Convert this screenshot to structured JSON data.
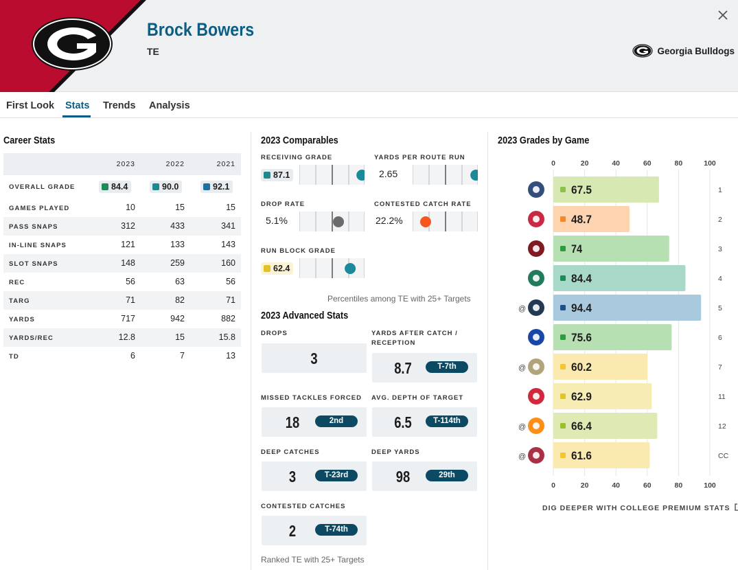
{
  "player": {
    "name": "Brock Bowers",
    "position": "TE"
  },
  "team": {
    "name": "Georgia Bulldogs",
    "logo_icon": "georgia-g-logo",
    "primary_color": "#ba0c2f"
  },
  "tabs": [
    {
      "label": "First Look",
      "active": false
    },
    {
      "label": "Stats",
      "active": true
    },
    {
      "label": "Trends",
      "active": false
    },
    {
      "label": "Analysis",
      "active": false
    }
  ],
  "colors": {
    "accent": "#0a5e84",
    "grade_green": "#1e8a5a",
    "grade_teal": "#1f8a8e",
    "grade_blue": "#1e6fa2",
    "grade_yellow": "#e5c129",
    "grade_orange": "#f5862a"
  },
  "career": {
    "title": "Career Stats",
    "years": [
      "2023",
      "2022",
      "2021"
    ],
    "overall_label": "OVERALL GRADE",
    "overall": [
      {
        "value": "84.4",
        "color": "#1e8a5a"
      },
      {
        "value": "90.0",
        "color": "#1f8a8e"
      },
      {
        "value": "92.1",
        "color": "#1e6fa2"
      }
    ],
    "rows": [
      {
        "label": "GAMES PLAYED",
        "values": [
          "10",
          "15",
          "15"
        ]
      },
      {
        "label": "PASS SNAPS",
        "values": [
          "312",
          "433",
          "341"
        ]
      },
      {
        "label": "IN-LINE SNAPS",
        "values": [
          "121",
          "133",
          "143"
        ]
      },
      {
        "label": "SLOT SNAPS",
        "values": [
          "148",
          "259",
          "160"
        ]
      },
      {
        "label": "REC",
        "values": [
          "56",
          "63",
          "56"
        ]
      },
      {
        "label": "TARG",
        "values": [
          "71",
          "82",
          "71"
        ]
      },
      {
        "label": "YARDS",
        "values": [
          "717",
          "942",
          "882"
        ]
      },
      {
        "label": "YARDS/REC",
        "values": [
          "12.8",
          "15",
          "15.8"
        ]
      },
      {
        "label": "TD",
        "values": [
          "6",
          "7",
          "13"
        ]
      }
    ]
  },
  "comparables": {
    "title": "2023 Comparables",
    "note": "Percentiles among TE with 25+ Targets",
    "items": [
      {
        "label": "RECEIVING GRADE",
        "value": "87.1",
        "chip": true,
        "chip_color": "#1f8a8e",
        "dot_color": "#1a8a9a",
        "percentile": 0.96
      },
      {
        "label": "YARDS PER ROUTE RUN",
        "value": "2.65",
        "chip": false,
        "dot_color": "#1a8a9a",
        "percentile": 0.97
      },
      {
        "label": "DROP RATE",
        "value": "5.1%",
        "chip": false,
        "dot_color": "#6b6b6b",
        "percentile": 0.6
      },
      {
        "label": "CONTESTED CATCH RATE",
        "value": "22.2%",
        "chip": false,
        "dot_color": "#f5581f",
        "percentile": 0.2
      },
      {
        "label": "RUN BLOCK GRADE",
        "value": "62.4",
        "chip": true,
        "chip_color": "#e5c129",
        "dot_color": "#1a8a9a",
        "percentile": 0.78
      }
    ]
  },
  "advanced": {
    "title": "2023 Advanced Stats",
    "note": "Ranked TE with 25+ Targets",
    "items": [
      {
        "label": "DROPS",
        "value": "3",
        "rank": ""
      },
      {
        "label": "YARDS AFTER CATCH / RECEPTION",
        "value": "8.7",
        "rank": "T-7th"
      },
      {
        "label": "MISSED TACKLES FORCED",
        "value": "18",
        "rank": "2nd"
      },
      {
        "label": "AVG. DEPTH OF TARGET",
        "value": "6.5",
        "rank": "T-114th"
      },
      {
        "label": "DEEP CATCHES",
        "value": "3",
        "rank": "T-23rd"
      },
      {
        "label": "DEEP YARDS",
        "value": "98",
        "rank": "29th"
      },
      {
        "label": "CONTESTED CATCHES",
        "value": "2",
        "rank": "T-74th"
      }
    ]
  },
  "grades_by_game": {
    "title": "2023 Grades by Game",
    "footer": "DIG DEEPER WITH COLLEGE PREMIUM STATS"
  },
  "chart_data": {
    "type": "bar",
    "orientation": "horizontal",
    "title": "2023 Grades by Game",
    "xlim": [
      0,
      100
    ],
    "ticks": [
      0,
      20,
      40,
      60,
      80,
      100
    ],
    "grid": true,
    "games": [
      {
        "week": "1",
        "away": false,
        "opponent_icon": "ut-martin-logo",
        "grade": 67.5,
        "label": "67.5",
        "color": "#d7e8b3",
        "chip": "#8bc34a"
      },
      {
        "week": "2",
        "away": false,
        "opponent_icon": "ball-state-logo",
        "grade": 48.7,
        "label": "48.7",
        "color": "#fdd3b0",
        "chip": "#f5862a"
      },
      {
        "week": "3",
        "away": false,
        "opponent_icon": "south-carolina-logo",
        "grade": 74,
        "label": "74",
        "color": "#b6e0b1",
        "chip": "#2e9b3f"
      },
      {
        "week": "4",
        "away": false,
        "opponent_icon": "uab-logo",
        "grade": 84.4,
        "label": "84.4",
        "color": "#a7d8c8",
        "chip": "#1e8a5a"
      },
      {
        "week": "5",
        "away": true,
        "opponent_icon": "auburn-logo",
        "grade": 94.4,
        "label": "94.4",
        "color": "#a9c9de",
        "chip": "#1e4f8a"
      },
      {
        "week": "6",
        "away": false,
        "opponent_icon": "kentucky-logo",
        "grade": 75.6,
        "label": "75.6",
        "color": "#b6e0b1",
        "chip": "#2e9b3f"
      },
      {
        "week": "7",
        "away": true,
        "opponent_icon": "vanderbilt-logo",
        "grade": 60.2,
        "label": "60.2",
        "color": "#fbeab0",
        "chip": "#f3c531"
      },
      {
        "week": "11",
        "away": false,
        "opponent_icon": "ole-miss-logo",
        "grade": 62.9,
        "label": "62.9",
        "color": "#f6ecb4",
        "chip": "#e0c52a"
      },
      {
        "week": "12",
        "away": true,
        "opponent_icon": "tennessee-logo",
        "grade": 66.4,
        "label": "66.4",
        "color": "#dfe9b4",
        "chip": "#9cbf2d"
      },
      {
        "week": "CC",
        "away": true,
        "opponent_icon": "alabama-logo",
        "grade": 61.6,
        "label": "61.6",
        "color": "#fbeab0",
        "chip": "#f3c531"
      }
    ],
    "away_marker": "@"
  }
}
